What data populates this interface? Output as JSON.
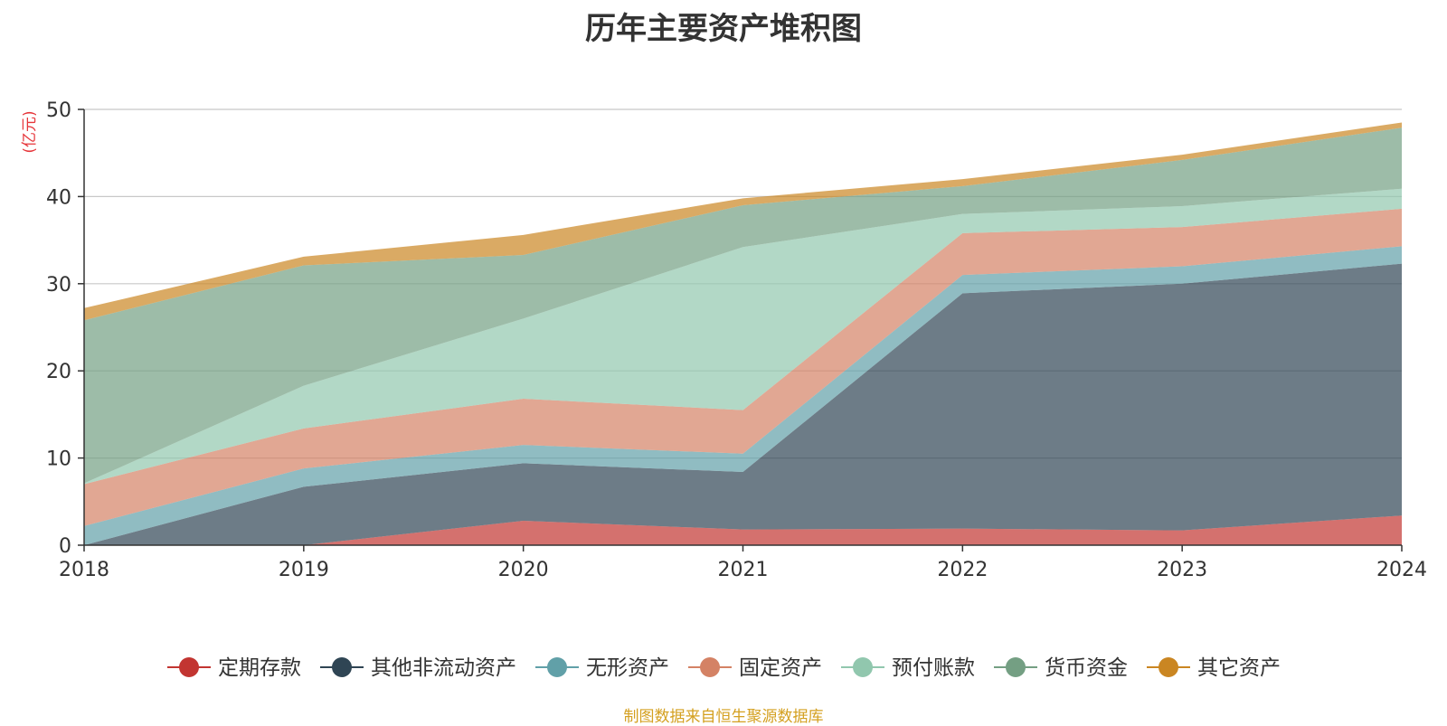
{
  "source_note": "制图数据来自恒生聚源数据库",
  "chart_data": {
    "type": "area",
    "stacked": true,
    "title": "历年主要资产堆积图",
    "ylabel": "(亿元)",
    "xlabel": "",
    "categories": [
      "2018",
      "2019",
      "2020",
      "2021",
      "2022",
      "2023",
      "2024"
    ],
    "ylim": [
      0,
      50
    ],
    "yticks": [
      0,
      10,
      20,
      30,
      40,
      50
    ],
    "grid": true,
    "legend_position": "bottom",
    "series": [
      {
        "name": "定期存款",
        "color": "#c23531",
        "values": [
          0,
          0,
          2.8,
          1.8,
          1.9,
          1.7,
          3.4
        ]
      },
      {
        "name": "其他非流动资产",
        "color": "#2f4554",
        "values": [
          0,
          6.7,
          6.6,
          6.6,
          27.0,
          28.3,
          28.9
        ]
      },
      {
        "name": "无形资产",
        "color": "#61a0a8",
        "values": [
          2.2,
          2.1,
          2.1,
          2.1,
          2.1,
          2.0,
          2.0
        ]
      },
      {
        "name": "固定资产",
        "color": "#d48265",
        "values": [
          4.8,
          4.6,
          5.3,
          5.0,
          4.8,
          4.5,
          4.3
        ]
      },
      {
        "name": "预付账款",
        "color": "#91c7ae",
        "values": [
          0.1,
          4.9,
          9.2,
          18.7,
          2.2,
          2.4,
          2.3
        ]
      },
      {
        "name": "货币资金",
        "color": "#749f83",
        "values": [
          18.7,
          13.8,
          7.3,
          4.8,
          3.2,
          5.3,
          7.0
        ]
      },
      {
        "name": "其它资产",
        "color": "#ca8622",
        "values": [
          1.4,
          1.0,
          2.3,
          0.8,
          0.8,
          0.6,
          0.6
        ]
      }
    ],
    "axis_color": "#333333",
    "ylabel_color": "#e6353a",
    "source_color": "#d4a020"
  }
}
